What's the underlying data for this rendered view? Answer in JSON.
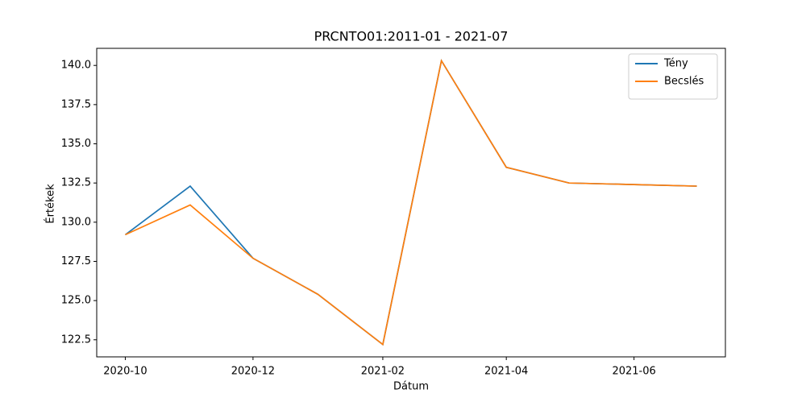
{
  "chart_data": {
    "type": "line",
    "title": "PRCNTO01:2011-01 - 2021-07",
    "xlabel": "Dátum",
    "ylabel": "Értékek",
    "x": [
      "2020-10",
      "2020-11",
      "2020-12",
      "2021-01",
      "2021-02",
      "2021-03",
      "2021-04",
      "2021-05",
      "2021-06",
      "2021-07"
    ],
    "series": [
      {
        "name": "Tény",
        "color": "#1f77b4",
        "values": [
          129.2,
          132.3,
          127.7,
          125.4,
          122.2,
          140.3,
          133.5,
          132.5,
          132.4,
          132.3
        ]
      },
      {
        "name": "Becslés",
        "color": "#ff7f0e",
        "values": [
          129.2,
          131.1,
          127.7,
          125.4,
          122.2,
          140.3,
          133.5,
          132.5,
          132.4,
          132.3
        ]
      }
    ],
    "xticks": [
      "2020-10",
      "2020-12",
      "2021-02",
      "2021-04",
      "2021-06"
    ],
    "ylim": [
      121.41,
      141.09
    ],
    "yticks": [
      {
        "value": 122.5,
        "label": "122.5"
      },
      {
        "value": 125,
        "label": "125.0"
      },
      {
        "value": 127.5,
        "label": "127.5"
      },
      {
        "value": 130,
        "label": "130.0"
      },
      {
        "value": 132.5,
        "label": "132.5"
      },
      {
        "value": 135,
        "label": "135.0"
      },
      {
        "value": 137.5,
        "label": "137.5"
      },
      {
        "value": 140,
        "label": "140.0"
      }
    ],
    "grid": false,
    "legend": "upper right"
  }
}
